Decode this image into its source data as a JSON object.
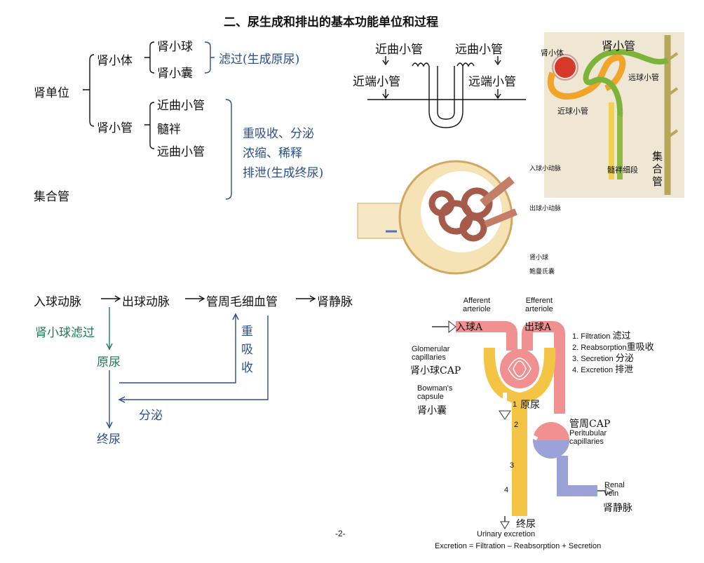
{
  "title": "二、尿生成和排出的基本功能单位和过程",
  "tree": {
    "root": "肾单位",
    "renal_corpuscle": "肾小体",
    "glomerulus": "肾小球",
    "capsule": "肾小囊",
    "filtration": "滤过(生成原尿)",
    "tubule": "肾小管",
    "proximal": "近曲小管",
    "loop": "髓袢",
    "distal": "远曲小管",
    "func1": "重吸收、分泌",
    "func2": "浓缩、稀释",
    "func3": "排泄(生成终尿)",
    "collecting": "集合管"
  },
  "loop_diagram": {
    "proximal_conv": "近曲小管",
    "distal_conv": "远曲小管",
    "proximal_straight": "近端小管",
    "distal_straight": "远端小管"
  },
  "photo": {
    "corpuscle": "肾小体",
    "tubule": "肾小管",
    "distal": "远球小管",
    "proximal": "近球小管",
    "loop": "髓袢细段",
    "collecting": "集合管"
  },
  "glomerulus_img": {
    "afferent": "入球小动脉",
    "efferent": "出球小动脉",
    "glomerulus": "肾小球",
    "capsule": "鲍曼氏囊"
  },
  "flow": {
    "n1": "入球动脉",
    "n2": "出球动脉",
    "n3": "管周毛细血管",
    "n4": "肾静脉",
    "filter": "肾小球滤过",
    "primary": "原尿",
    "reabsorb": "重吸收",
    "secrete": "分泌",
    "final": "终尿"
  },
  "schema": {
    "afferent": "Afferent\narteriole",
    "efferent": "Efferent\narteriole",
    "in_a": "入球A",
    "out_a": "出球A",
    "p1": "1. Filtration",
    "p1cn": "滤过",
    "p2": "2. Reabsorption",
    "p2cn": "重吸收",
    "p3": "3. Secretion",
    "p3cn": "分泌",
    "p4": "4. Excretion",
    "p4cn": "排泄",
    "glom": "Glomerular\ncapillaries",
    "glom_cn": "肾小球CAP",
    "bowman": "Bowman's\ncapsule",
    "bowman_cn": "肾小囊",
    "primary_cn": "原尿",
    "peri_cn": "管周CAP",
    "peri": "Peritubular\ncapillaries",
    "vein": "Renal\nvein",
    "vein_cn": "肾静脉",
    "final_cn": "终尿",
    "urinary": "Urinary excretion",
    "eq": "Excretion = Filtration – Reabsorption + Secretion",
    "n1": "1",
    "n2": "2",
    "n3": "3",
    "n4": "4"
  },
  "page": "-2-"
}
